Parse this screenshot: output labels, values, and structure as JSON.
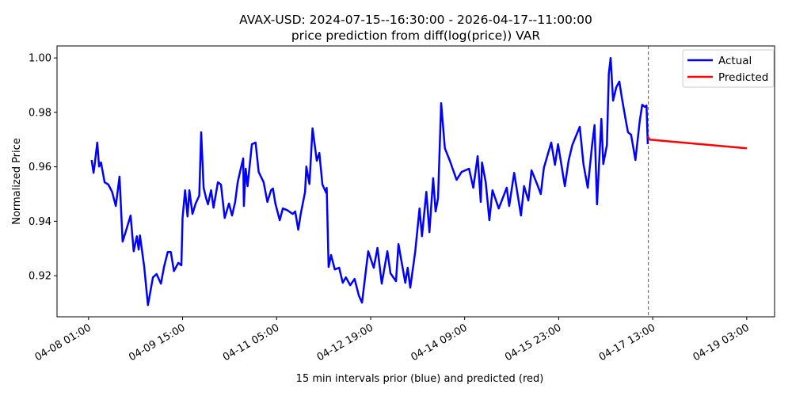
{
  "chart_data": {
    "type": "line",
    "title": "AVAX-USD: 2024-07-15--16:30:00 - 2026-04-17--11:00:00",
    "subtitle": "price prediction from diff(log(price)) VAR",
    "xlabel": "15 min intervals prior (blue) and predicted (red)",
    "ylabel": "Normalized Price",
    "x_unit": "15-minute interval index from 04-08 01:00",
    "xlim": [
      -51,
      1109
    ],
    "ylim": [
      0.9049,
      1.0044
    ],
    "grid": false,
    "legend_placement": "top-right",
    "x_ticks": [
      {
        "value": 0,
        "label": "04-08 01:00"
      },
      {
        "value": 152,
        "label": "04-09 15:00"
      },
      {
        "value": 304,
        "label": "04-11 05:00"
      },
      {
        "value": 456,
        "label": "04-12 19:00"
      },
      {
        "value": 608,
        "label": "04-14 09:00"
      },
      {
        "value": 760,
        "label": "04-15 23:00"
      },
      {
        "value": 912,
        "label": "04-17 13:00"
      },
      {
        "value": 1064,
        "label": "04-19 03:00"
      }
    ],
    "y_ticks": [
      {
        "value": 0.92,
        "label": "0.92"
      },
      {
        "value": 0.94,
        "label": "0.94"
      },
      {
        "value": 0.96,
        "label": "0.96"
      },
      {
        "value": 0.98,
        "label": "0.98"
      },
      {
        "value": 1.0,
        "label": "1.00"
      }
    ],
    "forecast_start": 905,
    "series": [
      {
        "name": "Actual",
        "color": "#0000ff",
        "points": [
          [
            5,
            0.9625
          ],
          [
            8,
            0.9578
          ],
          [
            10,
            0.961
          ],
          [
            14,
            0.9689
          ],
          [
            17,
            0.9601
          ],
          [
            20,
            0.9616
          ],
          [
            26,
            0.9543
          ],
          [
            32,
            0.9535
          ],
          [
            38,
            0.9508
          ],
          [
            44,
            0.9456
          ],
          [
            50,
            0.9564
          ],
          [
            55,
            0.9325
          ],
          [
            61,
            0.9369
          ],
          [
            68,
            0.9421
          ],
          [
            73,
            0.929
          ],
          [
            78,
            0.9345
          ],
          [
            81,
            0.9296
          ],
          [
            83,
            0.9348
          ],
          [
            90,
            0.9232
          ],
          [
            96,
            0.9092
          ],
          [
            104,
            0.9194
          ],
          [
            110,
            0.9206
          ],
          [
            117,
            0.9171
          ],
          [
            122,
            0.9232
          ],
          [
            128,
            0.9287
          ],
          [
            133,
            0.9287
          ],
          [
            138,
            0.9217
          ],
          [
            145,
            0.9247
          ],
          [
            150,
            0.9238
          ],
          [
            152,
            0.9412
          ],
          [
            156,
            0.9514
          ],
          [
            160,
            0.9418
          ],
          [
            163,
            0.9514
          ],
          [
            168,
            0.9427
          ],
          [
            173,
            0.9465
          ],
          [
            179,
            0.9494
          ],
          [
            182,
            0.9727
          ],
          [
            186,
            0.9523
          ],
          [
            190,
            0.9485
          ],
          [
            193,
            0.9462
          ],
          [
            198,
            0.9514
          ],
          [
            202,
            0.945
          ],
          [
            209,
            0.9543
          ],
          [
            214,
            0.9535
          ],
          [
            220,
            0.9412
          ],
          [
            227,
            0.9465
          ],
          [
            232,
            0.9421
          ],
          [
            237,
            0.9471
          ],
          [
            241,
            0.9543
          ],
          [
            246,
            0.9593
          ],
          [
            250,
            0.9631
          ],
          [
            251,
            0.9456
          ],
          [
            254,
            0.9593
          ],
          [
            257,
            0.9529
          ],
          [
            264,
            0.9683
          ],
          [
            270,
            0.9689
          ],
          [
            275,
            0.9581
          ],
          [
            283,
            0.9543
          ],
          [
            289,
            0.9471
          ],
          [
            295,
            0.9514
          ],
          [
            298,
            0.952
          ],
          [
            302,
            0.9465
          ],
          [
            309,
            0.9404
          ],
          [
            314,
            0.9447
          ],
          [
            321,
            0.9441
          ],
          [
            330,
            0.9427
          ],
          [
            334,
            0.9436
          ],
          [
            339,
            0.9369
          ],
          [
            343,
            0.9427
          ],
          [
            350,
            0.9508
          ],
          [
            352,
            0.9601
          ],
          [
            357,
            0.9537
          ],
          [
            362,
            0.9741
          ],
          [
            369,
            0.9622
          ],
          [
            373,
            0.9651
          ],
          [
            378,
            0.9535
          ],
          [
            384,
            0.9505
          ],
          [
            385,
            0.9523
          ],
          [
            388,
            0.9232
          ],
          [
            392,
            0.9276
          ],
          [
            398,
            0.9223
          ],
          [
            405,
            0.9229
          ],
          [
            411,
            0.9174
          ],
          [
            416,
            0.9194
          ],
          [
            423,
            0.9165
          ],
          [
            430,
            0.9188
          ],
          [
            437,
            0.9127
          ],
          [
            442,
            0.9101
          ],
          [
            452,
            0.929
          ],
          [
            461,
            0.9229
          ],
          [
            467,
            0.9302
          ],
          [
            474,
            0.9171
          ],
          [
            483,
            0.929
          ],
          [
            488,
            0.9209
          ],
          [
            497,
            0.918
          ],
          [
            501,
            0.9316
          ],
          [
            512,
            0.9174
          ],
          [
            516,
            0.9229
          ],
          [
            520,
            0.9156
          ],
          [
            528,
            0.9287
          ],
          [
            535,
            0.9447
          ],
          [
            539,
            0.9345
          ],
          [
            546,
            0.9508
          ],
          [
            551,
            0.936
          ],
          [
            557,
            0.9558
          ],
          [
            561,
            0.9436
          ],
          [
            565,
            0.9485
          ],
          [
            570,
            0.9834
          ],
          [
            576,
            0.9668
          ],
          [
            584,
            0.9622
          ],
          [
            595,
            0.9552
          ],
          [
            603,
            0.9581
          ],
          [
            615,
            0.9593
          ],
          [
            622,
            0.9523
          ],
          [
            629,
            0.9639
          ],
          [
            634,
            0.9471
          ],
          [
            636,
            0.9616
          ],
          [
            642,
            0.9543
          ],
          [
            648,
            0.9404
          ],
          [
            653,
            0.9514
          ],
          [
            663,
            0.9447
          ],
          [
            676,
            0.9523
          ],
          [
            680,
            0.9456
          ],
          [
            688,
            0.9578
          ],
          [
            699,
            0.9421
          ],
          [
            704,
            0.9529
          ],
          [
            711,
            0.9476
          ],
          [
            716,
            0.9587
          ],
          [
            725,
            0.9537
          ],
          [
            731,
            0.95
          ],
          [
            736,
            0.9596
          ],
          [
            748,
            0.9689
          ],
          [
            754,
            0.9607
          ],
          [
            759,
            0.9683
          ],
          [
            770,
            0.9529
          ],
          [
            776,
            0.9622
          ],
          [
            782,
            0.968
          ],
          [
            794,
            0.9747
          ],
          [
            800,
            0.961
          ],
          [
            807,
            0.9523
          ],
          [
            814,
            0.968
          ],
          [
            818,
            0.9753
          ],
          [
            822,
            0.9462
          ],
          [
            829,
            0.9776
          ],
          [
            832,
            0.961
          ],
          [
            838,
            0.968
          ],
          [
            841,
            0.9942
          ],
          [
            844,
            1.0
          ],
          [
            848,
            0.9843
          ],
          [
            853,
            0.9892
          ],
          [
            858,
            0.9913
          ],
          [
            862,
            0.9855
          ],
          [
            868,
            0.9776
          ],
          [
            872,
            0.9727
          ],
          [
            877,
            0.9718
          ],
          [
            884,
            0.9625
          ],
          [
            891,
            0.9767
          ],
          [
            895,
            0.9828
          ],
          [
            899,
            0.982
          ],
          [
            902,
            0.9825
          ],
          [
            904,
            0.9683
          ]
        ]
      },
      {
        "name": "Predicted",
        "color": "#ff0000",
        "points": [
          [
            904,
            0.9712
          ],
          [
            907,
            0.97
          ],
          [
            940,
            0.9693
          ],
          [
            1000,
            0.9681
          ],
          [
            1064,
            0.9668
          ]
        ]
      }
    ]
  }
}
